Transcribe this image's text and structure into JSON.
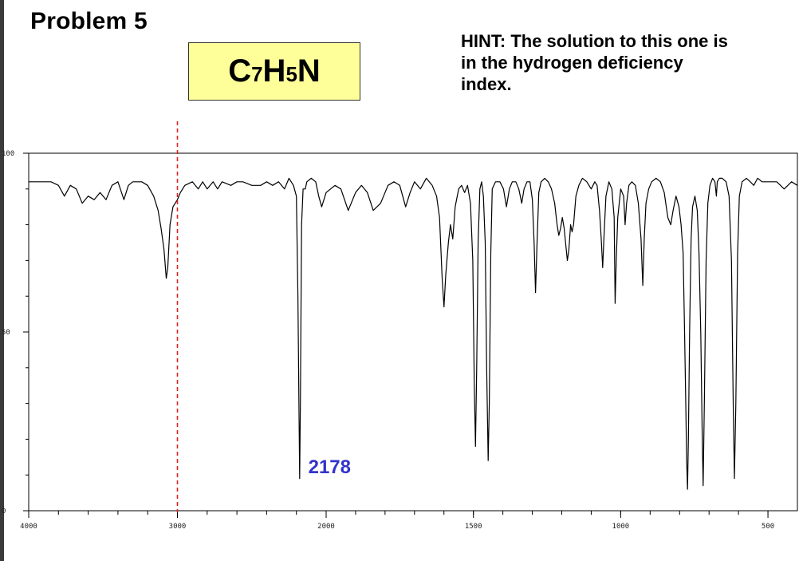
{
  "header": {
    "title": "Problem 5",
    "formula": {
      "parts": [
        "C",
        "7",
        "H",
        "5",
        "N"
      ]
    },
    "hint": "HINT: The solution to this one is in the hydrogen deficiency index."
  },
  "chart_data": {
    "type": "line",
    "title": "",
    "xlabel": "",
    "ylabel": "",
    "xlim": [
      4000,
      400
    ],
    "ylim": [
      0,
      100
    ],
    "x_ticks": [
      "4000",
      "3000",
      "2000",
      "1500",
      "1000",
      "500"
    ],
    "y_ticks": [
      "0",
      "50",
      "100"
    ],
    "x_tick_values": [
      4000,
      3000,
      2000,
      1500,
      1000,
      500
    ],
    "y_tick_values": [
      0,
      50,
      100
    ],
    "grid": false,
    "line_color": "#000000",
    "series": [
      {
        "values": [
          [
            4000,
            92
          ],
          [
            3850,
            92
          ],
          [
            3800,
            91
          ],
          [
            3760,
            88
          ],
          [
            3720,
            91
          ],
          [
            3680,
            90
          ],
          [
            3640,
            86
          ],
          [
            3600,
            88
          ],
          [
            3560,
            87
          ],
          [
            3520,
            89
          ],
          [
            3480,
            87
          ],
          [
            3440,
            91
          ],
          [
            3400,
            92
          ],
          [
            3360,
            87
          ],
          [
            3330,
            91
          ],
          [
            3300,
            92
          ],
          [
            3240,
            92
          ],
          [
            3200,
            91
          ],
          [
            3160,
            88
          ],
          [
            3130,
            84
          ],
          [
            3110,
            79
          ],
          [
            3090,
            73
          ],
          [
            3075,
            65
          ],
          [
            3065,
            68
          ],
          [
            3050,
            80
          ],
          [
            3030,
            85
          ],
          [
            3000,
            87
          ],
          [
            2980,
            89
          ],
          [
            2950,
            91
          ],
          [
            2900,
            92
          ],
          [
            2860,
            90
          ],
          [
            2830,
            92
          ],
          [
            2800,
            90
          ],
          [
            2760,
            92
          ],
          [
            2730,
            90
          ],
          [
            2700,
            92
          ],
          [
            2640,
            91
          ],
          [
            2600,
            92
          ],
          [
            2560,
            92
          ],
          [
            2500,
            91
          ],
          [
            2440,
            91
          ],
          [
            2400,
            92
          ],
          [
            2360,
            91
          ],
          [
            2320,
            92
          ],
          [
            2280,
            90
          ],
          [
            2250,
            93
          ],
          [
            2220,
            91
          ],
          [
            2200,
            88
          ],
          [
            2190,
            60
          ],
          [
            2182,
            25
          ],
          [
            2178,
            9
          ],
          [
            2173,
            30
          ],
          [
            2165,
            80
          ],
          [
            2155,
            90
          ],
          [
            2140,
            90
          ],
          [
            2130,
            92
          ],
          [
            2100,
            93
          ],
          [
            2070,
            92
          ],
          [
            2050,
            88
          ],
          [
            2030,
            85
          ],
          [
            2000,
            89
          ],
          [
            1970,
            91
          ],
          [
            1950,
            90
          ],
          [
            1925,
            84
          ],
          [
            1900,
            89
          ],
          [
            1880,
            91
          ],
          [
            1860,
            89
          ],
          [
            1840,
            84
          ],
          [
            1815,
            86
          ],
          [
            1790,
            91
          ],
          [
            1770,
            92
          ],
          [
            1750,
            91
          ],
          [
            1730,
            85
          ],
          [
            1715,
            89
          ],
          [
            1700,
            92
          ],
          [
            1680,
            90
          ],
          [
            1660,
            93
          ],
          [
            1640,
            91
          ],
          [
            1625,
            88
          ],
          [
            1615,
            82
          ],
          [
            1606,
            65
          ],
          [
            1600,
            57
          ],
          [
            1594,
            66
          ],
          [
            1585,
            75
          ],
          [
            1578,
            80
          ],
          [
            1570,
            76
          ],
          [
            1562,
            85
          ],
          [
            1550,
            90
          ],
          [
            1540,
            91
          ],
          [
            1530,
            89
          ],
          [
            1520,
            91
          ],
          [
            1510,
            86
          ],
          [
            1502,
            70
          ],
          [
            1497,
            35
          ],
          [
            1493,
            18
          ],
          [
            1489,
            40
          ],
          [
            1484,
            75
          ],
          [
            1478,
            90
          ],
          [
            1472,
            92
          ],
          [
            1466,
            88
          ],
          [
            1460,
            75
          ],
          [
            1455,
            40
          ],
          [
            1450,
            14
          ],
          [
            1446,
            30
          ],
          [
            1441,
            72
          ],
          [
            1436,
            90
          ],
          [
            1425,
            92
          ],
          [
            1410,
            92
          ],
          [
            1398,
            90
          ],
          [
            1388,
            85
          ],
          [
            1378,
            90
          ],
          [
            1368,
            92
          ],
          [
            1356,
            92
          ],
          [
            1346,
            90
          ],
          [
            1336,
            86
          ],
          [
            1328,
            90
          ],
          [
            1318,
            92
          ],
          [
            1308,
            92
          ],
          [
            1300,
            87
          ],
          [
            1294,
            75
          ],
          [
            1289,
            61
          ],
          [
            1284,
            75
          ],
          [
            1278,
            89
          ],
          [
            1270,
            92
          ],
          [
            1258,
            93
          ],
          [
            1246,
            92
          ],
          [
            1235,
            90
          ],
          [
            1224,
            86
          ],
          [
            1216,
            80
          ],
          [
            1210,
            77
          ],
          [
            1204,
            79
          ],
          [
            1198,
            82
          ],
          [
            1192,
            79
          ],
          [
            1186,
            74
          ],
          [
            1181,
            70
          ],
          [
            1176,
            73
          ],
          [
            1170,
            80
          ],
          [
            1165,
            78
          ],
          [
            1160,
            80
          ],
          [
            1152,
            88
          ],
          [
            1142,
            91
          ],
          [
            1130,
            93
          ],
          [
            1115,
            92
          ],
          [
            1100,
            90
          ],
          [
            1088,
            92
          ],
          [
            1080,
            91
          ],
          [
            1072,
            84
          ],
          [
            1066,
            76
          ],
          [
            1061,
            68
          ],
          [
            1056,
            78
          ],
          [
            1050,
            88
          ],
          [
            1040,
            92
          ],
          [
            1030,
            90
          ],
          [
            1022,
            82
          ],
          [
            1019,
            58
          ],
          [
            1015,
            70
          ],
          [
            1010,
            82
          ],
          [
            1000,
            90
          ],
          [
            990,
            88
          ],
          [
            985,
            80
          ],
          [
            980,
            86
          ],
          [
            972,
            91
          ],
          [
            962,
            92
          ],
          [
            950,
            91
          ],
          [
            940,
            86
          ],
          [
            931,
            76
          ],
          [
            925,
            63
          ],
          [
            920,
            76
          ],
          [
            914,
            86
          ],
          [
            905,
            90
          ],
          [
            895,
            92
          ],
          [
            880,
            93
          ],
          [
            865,
            92
          ],
          [
            852,
            89
          ],
          [
            840,
            82
          ],
          [
            830,
            80
          ],
          [
            822,
            84
          ],
          [
            812,
            88
          ],
          [
            802,
            85
          ],
          [
            795,
            80
          ],
          [
            788,
            72
          ],
          [
            783,
            50
          ],
          [
            779,
            30
          ],
          [
            776,
            14
          ],
          [
            773,
            6
          ],
          [
            770,
            20
          ],
          [
            766,
            50
          ],
          [
            761,
            76
          ],
          [
            756,
            85
          ],
          [
            748,
            88
          ],
          [
            740,
            84
          ],
          [
            734,
            72
          ],
          [
            728,
            50
          ],
          [
            723,
            20
          ],
          [
            720,
            7
          ],
          [
            716,
            30
          ],
          [
            710,
            70
          ],
          [
            704,
            86
          ],
          [
            697,
            91
          ],
          [
            688,
            93
          ],
          [
            680,
            92
          ],
          [
            675,
            88
          ],
          [
            672,
            92
          ],
          [
            665,
            93
          ],
          [
            655,
            93
          ],
          [
            642,
            92
          ],
          [
            632,
            88
          ],
          [
            624,
            70
          ],
          [
            618,
            30
          ],
          [
            614,
            9
          ],
          [
            609,
            30
          ],
          [
            603,
            72
          ],
          [
            597,
            88
          ],
          [
            588,
            92
          ],
          [
            573,
            93
          ],
          [
            560,
            92
          ],
          [
            548,
            91
          ],
          [
            535,
            93
          ],
          [
            520,
            92
          ],
          [
            500,
            92
          ],
          [
            470,
            92
          ],
          [
            445,
            90
          ],
          [
            420,
            92
          ],
          [
            400,
            91
          ]
        ]
      }
    ],
    "reference_line": {
      "x": 3000,
      "color": "#dd2222"
    },
    "annotations": [
      {
        "text": "2178",
        "x": 2120,
        "y": 10,
        "color": "#3333cc"
      }
    ]
  }
}
